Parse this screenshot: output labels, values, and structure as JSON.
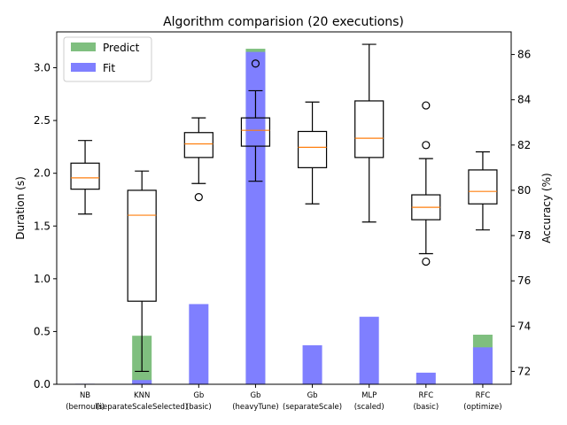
{
  "chart_data": {
    "type": "bar",
    "title": "Algorithm comparision (20 executions)",
    "ylabel_left": "Duration (s)",
    "ylabel_right": "Accuracy (%)",
    "ylim_left": [
      0,
      3.34
    ],
    "ylim_right": [
      71.43,
      87.0
    ],
    "yticks_left": [
      "0.0",
      "0.5",
      "1.0",
      "1.5",
      "2.0",
      "2.5",
      "3.0"
    ],
    "yticks_right": [
      "72",
      "74",
      "76",
      "78",
      "80",
      "82",
      "84",
      "86"
    ],
    "categories": [
      [
        "NB",
        "(bernoulli)"
      ],
      [
        "KNN",
        "(separateScaleSelected)"
      ],
      [
        "Gb",
        "(basic)"
      ],
      [
        "Gb",
        "(heavyTune)"
      ],
      [
        "Gb",
        "(separateScale)"
      ],
      [
        "MLP",
        "(scaled)"
      ],
      [
        "RFC",
        "(basic)"
      ],
      [
        "RFC",
        "(optimize)"
      ]
    ],
    "legend": {
      "placement": "top-left",
      "entries": [
        "Predict",
        "Fit"
      ]
    },
    "series": [
      {
        "name": "Predict",
        "color": "#7fbf7f",
        "values": [
          0.0,
          0.46,
          0.0,
          3.18,
          0.0,
          0.0,
          0.0,
          0.47
        ]
      },
      {
        "name": "Fit",
        "color": "#7f7fff",
        "values": [
          0.005,
          0.04,
          0.76,
          3.15,
          0.37,
          0.64,
          0.11,
          0.35
        ]
      }
    ],
    "accuracy_boxplots": [
      {
        "whislo": 78.95,
        "q1": 80.05,
        "med": 80.55,
        "q3": 81.2,
        "whishi": 82.2,
        "fliers": []
      },
      {
        "whislo": 72.0,
        "q1": 75.1,
        "med": 78.9,
        "q3": 80.0,
        "whishi": 80.85,
        "fliers": []
      },
      {
        "whislo": 80.3,
        "q1": 81.45,
        "med": 82.05,
        "q3": 82.55,
        "whishi": 83.2,
        "fliers": [
          79.7
        ]
      },
      {
        "whislo": 80.4,
        "q1": 81.95,
        "med": 82.65,
        "q3": 83.2,
        "whishi": 84.4,
        "fliers": [
          85.6
        ]
      },
      {
        "whislo": 79.4,
        "q1": 81.0,
        "med": 81.9,
        "q3": 82.6,
        "whishi": 83.9,
        "fliers": []
      },
      {
        "whislo": 78.6,
        "q1": 81.45,
        "med": 82.3,
        "q3": 83.95,
        "whishi": 86.45,
        "fliers": []
      },
      {
        "whislo": 77.2,
        "q1": 78.7,
        "med": 79.25,
        "q3": 79.8,
        "whishi": 81.4,
        "fliers": [
          82.0,
          83.75,
          76.85
        ]
      },
      {
        "whislo": 78.25,
        "q1": 79.4,
        "med": 79.95,
        "q3": 80.9,
        "whishi": 81.7,
        "fliers": []
      }
    ]
  }
}
